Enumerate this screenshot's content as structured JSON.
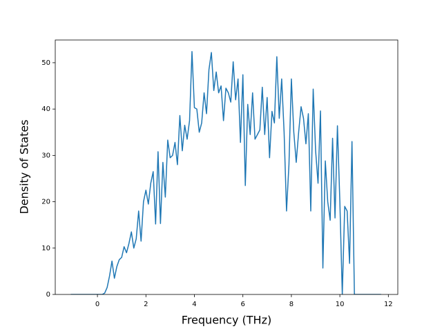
{
  "chart_data": {
    "type": "line",
    "x_label": "Frequency (THz)",
    "y_label": "Density of States",
    "xlim": [
      -1.74,
      12.39
    ],
    "ylim": [
      0,
      54.9
    ],
    "xticks": [
      0,
      2,
      4,
      6,
      8,
      10,
      12
    ],
    "yticks": [
      0,
      10,
      20,
      30,
      40,
      50
    ],
    "x": [
      -1.1,
      -1.0,
      -0.9,
      -0.8,
      -0.7,
      -0.6,
      -0.5,
      -0.4,
      -0.3,
      -0.2,
      -0.1,
      0,
      0.1,
      0.2,
      0.3,
      0.4,
      0.5,
      0.6,
      0.7,
      0.8,
      0.9,
      1.0,
      1.1,
      1.2,
      1.3,
      1.4,
      1.5,
      1.6,
      1.7,
      1.8,
      1.9,
      2.0,
      2.1,
      2.2,
      2.3,
      2.4,
      2.5,
      2.6,
      2.7,
      2.8,
      2.9,
      3.0,
      3.1,
      3.2,
      3.3,
      3.4,
      3.5,
      3.6,
      3.7,
      3.8,
      3.9,
      4.0,
      4.1,
      4.2,
      4.3,
      4.4,
      4.5,
      4.6,
      4.7,
      4.8,
      4.9,
      5.0,
      5.1,
      5.2,
      5.3,
      5.4,
      5.5,
      5.6,
      5.7,
      5.8,
      5.9,
      6.0,
      6.1,
      6.2,
      6.3,
      6.4,
      6.5,
      6.6,
      6.7,
      6.8,
      6.9,
      7.0,
      7.1,
      7.2,
      7.3,
      7.4,
      7.5,
      7.6,
      7.7,
      7.8,
      7.9,
      8.0,
      8.1,
      8.2,
      8.3,
      8.4,
      8.5,
      8.6,
      8.7,
      8.8,
      8.9,
      9.0,
      9.1,
      9.2,
      9.3,
      9.4,
      9.5,
      9.6,
      9.7,
      9.8,
      9.9,
      10.0,
      10.1,
      10.2,
      10.3,
      10.4,
      10.5,
      10.6,
      10.7,
      10.8,
      10.9,
      11.0,
      11.1,
      11.2,
      11.3,
      11.4,
      11.5,
      11.6,
      11.7
    ],
    "series": [
      {
        "color": "#1f77b4",
        "values": [
          0,
          0,
          0,
          0,
          0,
          0,
          0,
          0,
          0,
          0,
          0,
          0,
          0,
          0,
          0.3,
          1.5,
          4,
          7.2,
          3.5,
          6,
          7.5,
          8,
          10.3,
          9,
          11,
          13.5,
          10,
          12,
          18,
          11.5,
          20,
          22.5,
          19.5,
          24,
          26.5,
          15.2,
          30.8,
          15.3,
          28.5,
          21,
          33.3,
          29.5,
          30,
          32.8,
          28,
          38.6,
          31,
          36.5,
          33.5,
          37.5,
          52.4,
          40.3,
          40,
          35,
          37,
          43.5,
          39,
          48.5,
          52.2,
          44,
          48,
          43.5,
          45,
          37.5,
          44.5,
          43.5,
          41.5,
          50.2,
          42,
          46.5,
          32.8,
          47.4,
          23.5,
          41,
          34.5,
          43.5,
          33.5,
          34.5,
          35.5,
          44.7,
          34.5,
          42.5,
          29.5,
          39.5,
          37,
          51.3,
          38,
          46.5,
          35,
          18,
          28,
          46.5,
          35,
          28.5,
          35,
          40.5,
          38,
          32.5,
          39,
          18,
          44.3,
          31,
          24,
          39.6,
          5.7,
          28.8,
          20,
          16,
          33.7,
          16.5,
          36.4,
          20,
          0,
          19,
          18,
          6.7,
          33,
          0,
          0,
          0,
          0,
          0,
          0,
          0,
          0,
          0,
          0,
          0,
          0
        ]
      }
    ]
  }
}
